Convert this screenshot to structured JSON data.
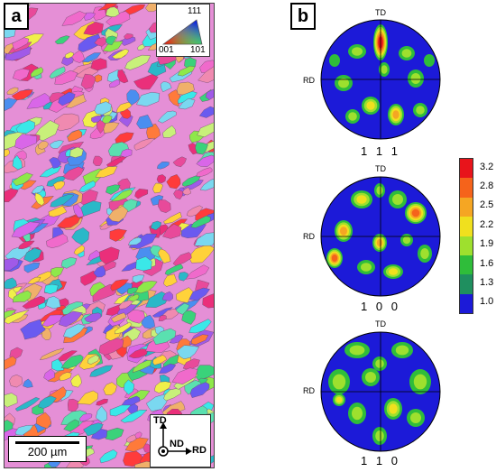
{
  "panel_a": {
    "letter": "a",
    "ipf_key": {
      "v111": "111",
      "v001": "001",
      "v101": "101"
    },
    "scale_bar": "200 µm",
    "axes": {
      "td": "TD",
      "nd": "ND",
      "rd": "RD"
    }
  },
  "panel_b": {
    "letter": "b",
    "pole_figures": [
      {
        "label": "1 1 1",
        "td": "TD",
        "rd": "RD"
      },
      {
        "label": "1 0 0",
        "td": "TD",
        "rd": "RD"
      },
      {
        "label": "1 1 0",
        "td": "TD",
        "rd": "RD"
      }
    ],
    "colorbar": {
      "ticks": [
        "3.2",
        "2.8",
        "2.5",
        "2.2",
        "1.9",
        "1.6",
        "1.3",
        "1.0"
      ],
      "colors": [
        "#e8141b",
        "#f5631b",
        "#f5a623",
        "#f0e01e",
        "#9ee02e",
        "#2fbd3a",
        "#1f8f5f",
        "#1c1ad8"
      ]
    }
  }
}
